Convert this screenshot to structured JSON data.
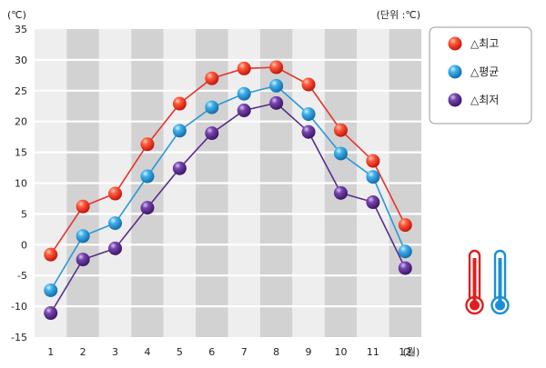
{
  "chart_data": {
    "type": "line",
    "y_unit_label": "(℃)",
    "unit_note": "(단위 :℃)",
    "x_unit_label": "(월)",
    "categories": [
      "1",
      "2",
      "3",
      "4",
      "5",
      "6",
      "7",
      "8",
      "9",
      "10",
      "11",
      "12"
    ],
    "ylim": [
      -15,
      35
    ],
    "yticks": [
      "35",
      "30",
      "25",
      "20",
      "15",
      "10",
      "5",
      "0",
      "-5",
      "-10",
      "-15"
    ],
    "series": [
      {
        "name": "△최고",
        "color": "#e8312a",
        "values": [
          -1.6,
          6.2,
          8.3,
          16.3,
          22.9,
          27.0,
          28.6,
          28.8,
          26.0,
          18.6,
          13.6,
          3.2
        ]
      },
      {
        "name": "△평균",
        "color": "#2a98d8",
        "values": [
          -7.4,
          1.4,
          3.5,
          11.1,
          18.5,
          22.3,
          24.5,
          25.8,
          21.2,
          14.8,
          11.0,
          -1.1
        ]
      },
      {
        "name": "△최저",
        "color": "#5a2d8c",
        "values": [
          -11.1,
          -2.4,
          -0.6,
          6.0,
          12.4,
          18.1,
          21.8,
          23.0,
          18.3,
          8.4,
          6.9,
          -3.8
        ]
      }
    ],
    "grid": true,
    "legend": "top-right",
    "icons": [
      "thermometer-hot-icon",
      "thermometer-cold-icon"
    ]
  }
}
